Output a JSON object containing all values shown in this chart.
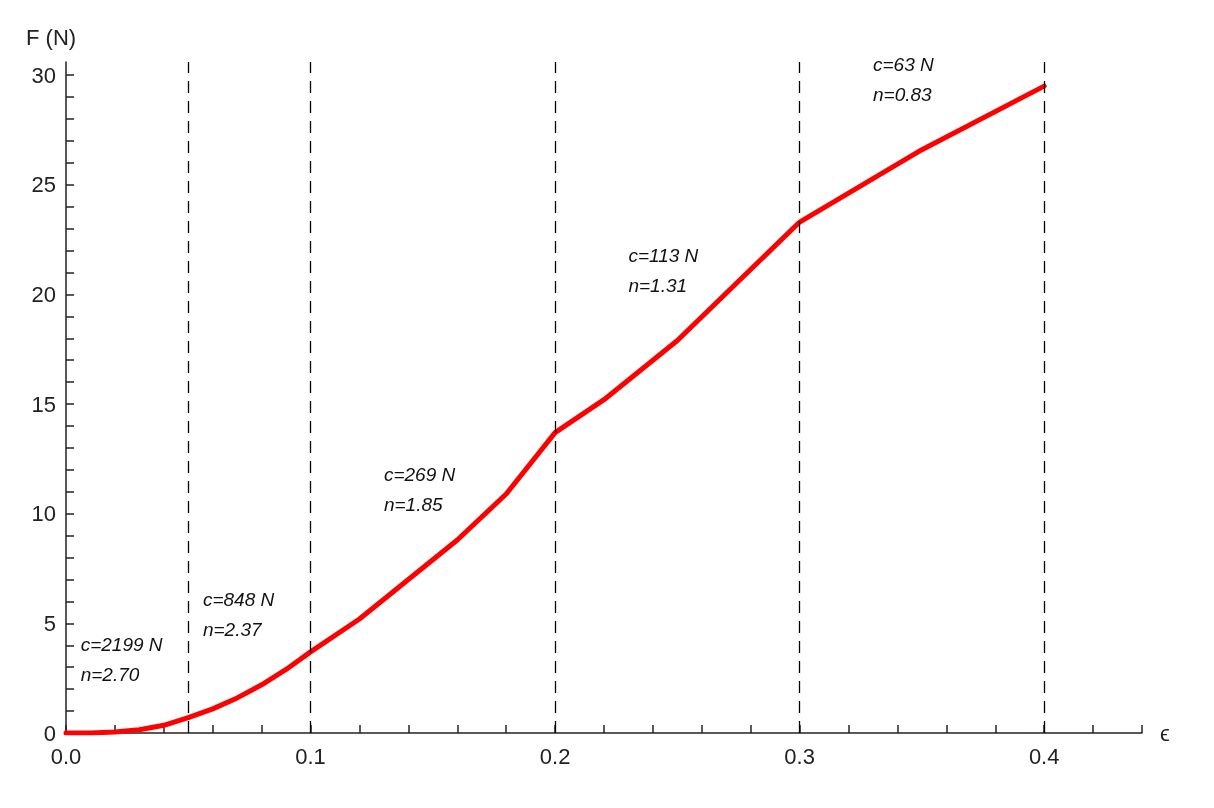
{
  "chart_data": {
    "type": "line",
    "xlabel": "ϵ",
    "ylabel": "F (N)",
    "x": [
      0,
      0.01,
      0.02,
      0.03,
      0.04,
      0.05,
      0.06,
      0.07,
      0.08,
      0.09,
      0.1,
      0.12,
      0.14,
      0.15,
      0.16,
      0.18,
      0.2,
      0.22,
      0.25,
      0.275,
      0.3,
      0.35,
      0.4
    ],
    "series": [
      {
        "color": "#ff0000",
        "values": [
          0,
          0,
          0.05,
          0.15,
          0.35,
          0.7,
          1.1,
          1.6,
          2.2,
          2.9,
          3.7,
          5.2,
          7.0,
          7.9,
          8.8,
          10.9,
          13.7,
          15.2,
          17.9,
          20.6,
          23.3,
          26.6,
          29.5
        ]
      }
    ],
    "xlim": [
      0,
      0.44
    ],
    "xticks": [
      {
        "value": 0,
        "label": "0.0"
      },
      {
        "value": 0.02,
        "label": null
      },
      {
        "value": 0.04,
        "label": null
      },
      {
        "value": 0.06,
        "label": null
      },
      {
        "value": 0.08,
        "label": null
      },
      {
        "value": 0.1,
        "label": "0.1"
      },
      {
        "value": 0.12,
        "label": null
      },
      {
        "value": 0.14,
        "label": null
      },
      {
        "value": 0.16,
        "label": null
      },
      {
        "value": 0.18,
        "label": null
      },
      {
        "value": 0.2,
        "label": "0.2"
      },
      {
        "value": 0.22,
        "label": null
      },
      {
        "value": 0.24,
        "label": null
      },
      {
        "value": 0.26,
        "label": null
      },
      {
        "value": 0.28,
        "label": null
      },
      {
        "value": 0.3,
        "label": "0.3"
      },
      {
        "value": 0.32,
        "label": null
      },
      {
        "value": 0.34,
        "label": null
      },
      {
        "value": 0.36,
        "label": null
      },
      {
        "value": 0.38,
        "label": null
      },
      {
        "value": 0.4,
        "label": "0.4"
      },
      {
        "value": 0.42,
        "label": null
      },
      {
        "value": 0.44,
        "label": null
      }
    ],
    "ylim": [
      0,
      30.6
    ],
    "yticks": [
      0,
      {
        "value": 1,
        "label": null
      },
      {
        "value": 2,
        "label": null
      },
      {
        "value": 3,
        "label": null
      },
      {
        "value": 4,
        "label": null
      },
      5,
      {
        "value": 6,
        "label": null
      },
      {
        "value": 7,
        "label": null
      },
      {
        "value": 8,
        "label": null
      },
      {
        "value": 9,
        "label": null
      },
      10,
      {
        "value": 11,
        "label": null
      },
      {
        "value": 12,
        "label": null
      },
      {
        "value": 13,
        "label": null
      },
      {
        "value": 14,
        "label": null
      },
      15,
      {
        "value": 16,
        "label": null
      },
      {
        "value": 17,
        "label": null
      },
      {
        "value": 18,
        "label": null
      },
      {
        "value": 19,
        "label": null
      },
      20,
      {
        "value": 21,
        "label": null
      },
      {
        "value": 22,
        "label": null
      },
      {
        "value": 23,
        "label": null
      },
      {
        "value": 24,
        "label": null
      },
      25,
      {
        "value": 26,
        "label": null
      },
      {
        "value": 27,
        "label": null
      },
      {
        "value": 28,
        "label": null
      },
      {
        "value": 29,
        "label": null
      },
      30
    ],
    "ref_lines": [
      {
        "axis": "x",
        "value": 0.05,
        "color": "#000000",
        "line_style": "dashed"
      },
      {
        "axis": "x",
        "value": 0.1,
        "color": "#000000",
        "line_style": "dashed"
      },
      {
        "axis": "x",
        "value": 0.2,
        "color": "#000000",
        "line_style": "dashed"
      },
      {
        "axis": "x",
        "value": 0.3,
        "color": "#000000",
        "line_style": "dashed"
      },
      {
        "axis": "x",
        "value": 0.4,
        "color": "#000000",
        "line_style": "dashed"
      }
    ],
    "annotations": [
      "c=2199 N\nn=2.70",
      "c=848 N\nn=2.37",
      "c=269 N\nn=1.85",
      "c=113 N\nn=1.31",
      "c=63 N\nn=0.83"
    ],
    "grid": false,
    "marker": "none",
    "line_style": "solid"
  }
}
